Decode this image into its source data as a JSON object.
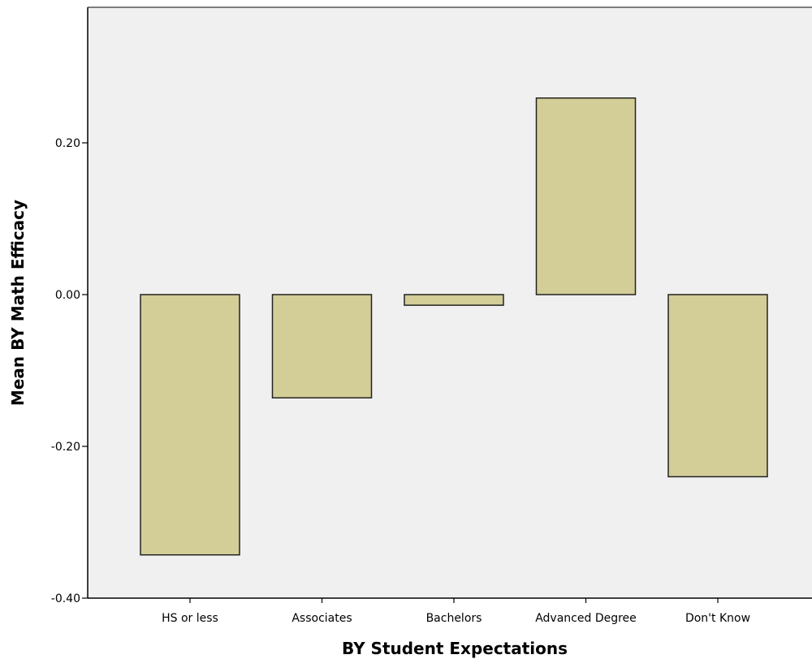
{
  "chart_data": {
    "type": "bar",
    "title": "",
    "xlabel": "BY Student Expectations",
    "ylabel": "Mean BY Math Efficacy",
    "categories": [
      "HS or less",
      "Associates",
      "Bachelors",
      "Advanced Degree",
      "Don't Know"
    ],
    "values": [
      -0.343,
      -0.136,
      -0.014,
      0.259,
      -0.24
    ],
    "ylim": [
      -0.4,
      0.4
    ],
    "yticks": [
      -0.4,
      -0.2,
      0.0,
      0.2
    ],
    "ytick_labels": [
      "-0.40",
      "-0.20",
      "0.00",
      "0.20"
    ],
    "grid": false,
    "colors": {
      "plot_background": "#f0f0f0",
      "bar_fill": "#d3ce97",
      "bar_stroke": "#222222",
      "axis": "#000000"
    }
  }
}
